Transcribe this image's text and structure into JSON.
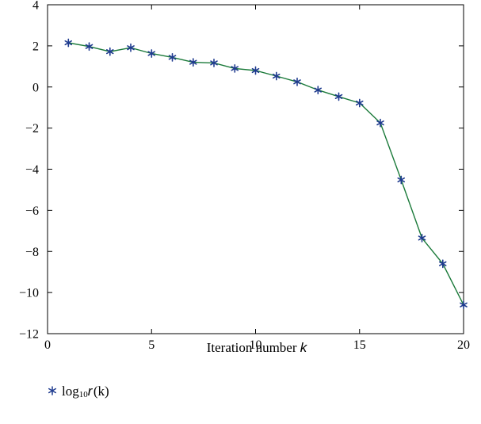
{
  "chart_data": {
    "type": "line",
    "xlabel": "Iteration number k",
    "ylabel": "",
    "xlim": [
      0,
      20
    ],
    "ylim": [
      -12,
      4
    ],
    "xticks": [
      0,
      5,
      10,
      15,
      20
    ],
    "yticks": [
      4,
      2,
      0,
      -2,
      -4,
      -6,
      -8,
      -10,
      -12
    ],
    "xtick_labels": [
      "0",
      "5",
      "10",
      "15",
      "20"
    ],
    "ytick_labels": [
      "4",
      "2",
      "0",
      "−2",
      "−4",
      "−6",
      "−8",
      "−10",
      "−12"
    ],
    "grid": false,
    "legend_position": "bottom-left, below plot",
    "series": [
      {
        "name": "log10 r (k)",
        "marker": "asterisk",
        "line_color": "#1b7a3a",
        "marker_color": "#1f3b8f",
        "x": [
          1,
          2,
          3,
          4,
          5,
          6,
          7,
          8,
          9,
          10,
          11,
          12,
          13,
          14,
          15,
          16,
          17,
          18,
          19,
          20
        ],
        "y": [
          2.15,
          1.97,
          1.72,
          1.91,
          1.63,
          1.44,
          1.2,
          1.17,
          0.9,
          0.8,
          0.53,
          0.25,
          -0.15,
          -0.47,
          -0.78,
          -1.75,
          -4.52,
          -7.35,
          -8.6,
          -10.6
        ]
      }
    ]
  },
  "legend": {
    "prefix": "log",
    "subscript": "10",
    "variable": "r",
    "argument": "(k)"
  },
  "x_axis_title": {
    "text": "Iteration number",
    "variable": "k"
  }
}
